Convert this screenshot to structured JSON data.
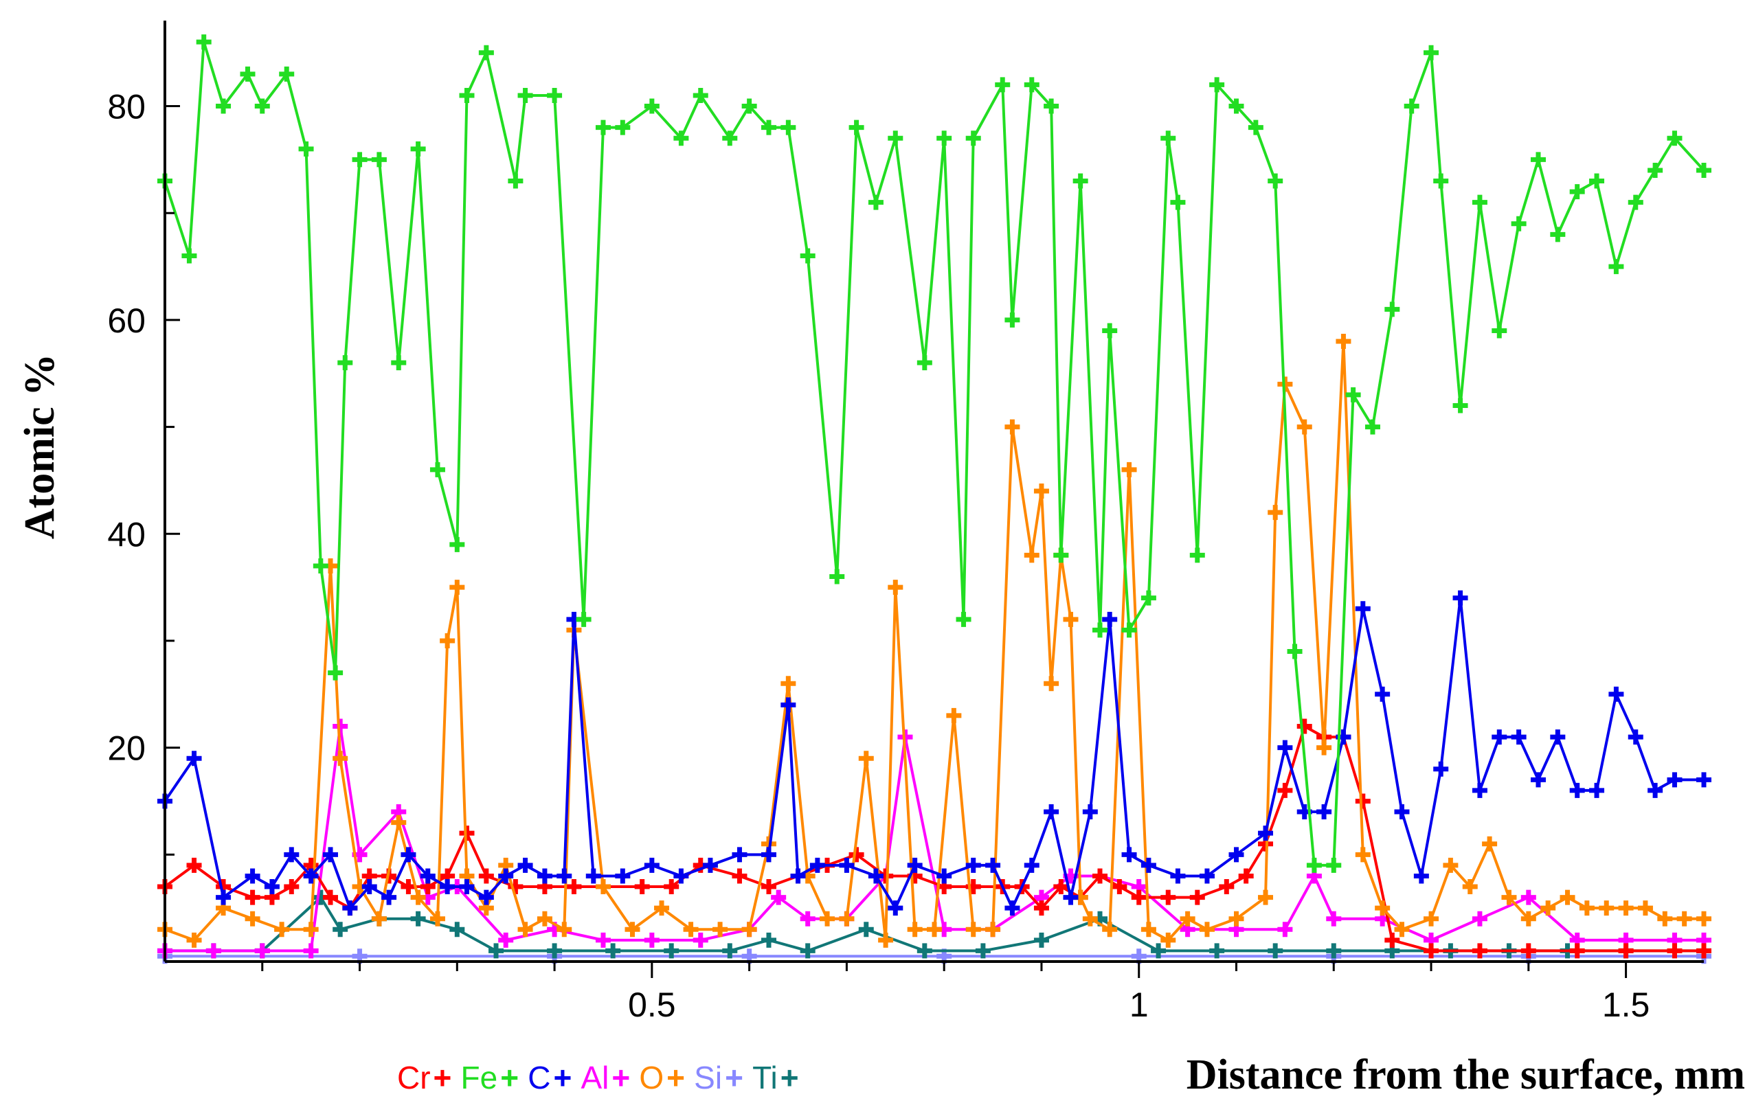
{
  "chart_data": {
    "type": "line",
    "title": "",
    "xlabel": "Distance from the surface, mm",
    "ylabel": "Atomic %",
    "xlim": [
      0,
      1.58
    ],
    "ylim": [
      0,
      88
    ],
    "x_ticks": [
      0.5,
      1,
      1.5
    ],
    "x_tick_labels": [
      "0.5",
      "1",
      "1.5"
    ],
    "y_ticks": [
      20,
      40,
      60,
      80
    ],
    "y_tick_labels": [
      "20",
      "40",
      "60",
      "80"
    ],
    "grid": false,
    "legend_position": "bottom-left",
    "marker": "+",
    "series": [
      {
        "name": "Cr",
        "color": "#ff0000",
        "x": [
          0,
          0.03,
          0.06,
          0.09,
          0.11,
          0.13,
          0.15,
          0.17,
          0.19,
          0.21,
          0.23,
          0.25,
          0.27,
          0.29,
          0.31,
          0.33,
          0.36,
          0.39,
          0.42,
          0.45,
          0.49,
          0.52,
          0.55,
          0.59,
          0.62,
          0.65,
          0.68,
          0.71,
          0.74,
          0.77,
          0.8,
          0.83,
          0.86,
          0.88,
          0.9,
          0.92,
          0.94,
          0.96,
          0.98,
          1.0,
          1.03,
          1.06,
          1.09,
          1.11,
          1.13,
          1.15,
          1.17,
          1.19,
          1.21,
          1.23,
          1.26,
          1.3,
          1.35,
          1.4,
          1.45,
          1.5,
          1.55,
          1.58
        ],
        "y": [
          7,
          9,
          7,
          6,
          6,
          7,
          9,
          6,
          5,
          8,
          8,
          7,
          7,
          8,
          12,
          8,
          7,
          7,
          7,
          7,
          7,
          7,
          9,
          8,
          7,
          8,
          9,
          10,
          8,
          8,
          7,
          7,
          7,
          7,
          5,
          7,
          6,
          8,
          7,
          6,
          6,
          6,
          7,
          8,
          11,
          16,
          22,
          21,
          21,
          15,
          2,
          1,
          1,
          1,
          1,
          1,
          1,
          1
        ]
      },
      {
        "name": "Fe",
        "color": "#22dd22",
        "x": [
          0,
          0.025,
          0.04,
          0.06,
          0.085,
          0.1,
          0.125,
          0.145,
          0.16,
          0.175,
          0.185,
          0.2,
          0.22,
          0.24,
          0.26,
          0.28,
          0.3,
          0.31,
          0.33,
          0.36,
          0.37,
          0.4,
          0.43,
          0.45,
          0.47,
          0.5,
          0.53,
          0.55,
          0.58,
          0.6,
          0.62,
          0.64,
          0.66,
          0.69,
          0.71,
          0.73,
          0.75,
          0.78,
          0.8,
          0.82,
          0.83,
          0.86,
          0.87,
          0.89,
          0.91,
          0.92,
          0.94,
          0.96,
          0.97,
          0.99,
          1.01,
          1.03,
          1.04,
          1.06,
          1.08,
          1.1,
          1.12,
          1.14,
          1.16,
          1.18,
          1.2,
          1.22,
          1.24,
          1.26,
          1.28,
          1.3,
          1.31,
          1.33,
          1.35,
          1.37,
          1.39,
          1.41,
          1.43,
          1.45,
          1.47,
          1.49,
          1.51,
          1.53,
          1.55,
          1.58
        ],
        "y": [
          73,
          66,
          86,
          80,
          83,
          80,
          83,
          76,
          37,
          27,
          56,
          75,
          75,
          56,
          76,
          46,
          39,
          81,
          85,
          73,
          81,
          81,
          32,
          78,
          78,
          80,
          77,
          81,
          77,
          80,
          78,
          78,
          66,
          36,
          78,
          71,
          77,
          56,
          77,
          32,
          77,
          82,
          60,
          82,
          80,
          38,
          73,
          31,
          59,
          31,
          34,
          77,
          71,
          38,
          82,
          80,
          78,
          73,
          29,
          9,
          9,
          53,
          50,
          61,
          80,
          85,
          73,
          52,
          71,
          59,
          69,
          75,
          68,
          72,
          73,
          65,
          71,
          74,
          77,
          74
        ]
      },
      {
        "name": "C",
        "color": "#0000ee",
        "x": [
          0,
          0.03,
          0.06,
          0.09,
          0.11,
          0.13,
          0.15,
          0.17,
          0.19,
          0.21,
          0.23,
          0.25,
          0.27,
          0.29,
          0.31,
          0.33,
          0.35,
          0.37,
          0.39,
          0.41,
          0.42,
          0.44,
          0.47,
          0.5,
          0.53,
          0.56,
          0.59,
          0.62,
          0.64,
          0.65,
          0.67,
          0.7,
          0.73,
          0.75,
          0.77,
          0.8,
          0.83,
          0.85,
          0.87,
          0.89,
          0.91,
          0.93,
          0.95,
          0.97,
          0.99,
          1.01,
          1.04,
          1.07,
          1.1,
          1.13,
          1.15,
          1.17,
          1.19,
          1.21,
          1.23,
          1.25,
          1.27,
          1.29,
          1.31,
          1.33,
          1.35,
          1.37,
          1.39,
          1.41,
          1.43,
          1.45,
          1.47,
          1.49,
          1.51,
          1.53,
          1.55,
          1.58
        ],
        "y": [
          15,
          19,
          6,
          8,
          7,
          10,
          8,
          10,
          5,
          7,
          6,
          10,
          8,
          7,
          7,
          6,
          8,
          9,
          8,
          8,
          32,
          8,
          8,
          9,
          8,
          9,
          10,
          10,
          24,
          8,
          9,
          9,
          8,
          5,
          9,
          8,
          9,
          9,
          5,
          9,
          14,
          6,
          14,
          32,
          10,
          9,
          8,
          8,
          10,
          12,
          20,
          14,
          14,
          21,
          33,
          25,
          14,
          8,
          18,
          34,
          16,
          21,
          21,
          17,
          21,
          16,
          16,
          25,
          21,
          16,
          17,
          17
        ]
      },
      {
        "name": "Al",
        "color": "#ff00ff",
        "x": [
          0,
          0.05,
          0.1,
          0.15,
          0.18,
          0.2,
          0.24,
          0.27,
          0.3,
          0.35,
          0.4,
          0.45,
          0.5,
          0.55,
          0.6,
          0.63,
          0.66,
          0.7,
          0.74,
          0.76,
          0.8,
          0.85,
          0.9,
          0.93,
          0.96,
          1.0,
          1.05,
          1.1,
          1.15,
          1.18,
          1.2,
          1.25,
          1.3,
          1.35,
          1.4,
          1.45,
          1.5,
          1.55,
          1.58
        ],
        "y": [
          1,
          1,
          1,
          1,
          22,
          10,
          14,
          6,
          7,
          2,
          3,
          2,
          2,
          2,
          3,
          6,
          4,
          4,
          8,
          21,
          3,
          3,
          6,
          8,
          8,
          7,
          3,
          3,
          3,
          8,
          4,
          4,
          2,
          4,
          6,
          2,
          2,
          2,
          2
        ]
      },
      {
        "name": "O",
        "color": "#ff8800",
        "x": [
          0,
          0.03,
          0.06,
          0.09,
          0.12,
          0.15,
          0.17,
          0.18,
          0.2,
          0.22,
          0.24,
          0.26,
          0.28,
          0.29,
          0.3,
          0.31,
          0.33,
          0.35,
          0.37,
          0.39,
          0.41,
          0.42,
          0.45,
          0.48,
          0.51,
          0.54,
          0.57,
          0.6,
          0.62,
          0.64,
          0.66,
          0.68,
          0.7,
          0.72,
          0.74,
          0.75,
          0.77,
          0.79,
          0.81,
          0.83,
          0.85,
          0.87,
          0.89,
          0.9,
          0.91,
          0.92,
          0.93,
          0.94,
          0.95,
          0.97,
          0.99,
          1.01,
          1.03,
          1.05,
          1.07,
          1.1,
          1.13,
          1.14,
          1.15,
          1.17,
          1.19,
          1.21,
          1.23,
          1.25,
          1.27,
          1.3,
          1.32,
          1.34,
          1.36,
          1.38,
          1.4,
          1.42,
          1.44,
          1.46,
          1.48,
          1.5,
          1.52,
          1.54,
          1.56,
          1.58
        ],
        "y": [
          3,
          2,
          5,
          4,
          3,
          3,
          37,
          19,
          7,
          4,
          13,
          6,
          4,
          30,
          35,
          8,
          5,
          9,
          3,
          4,
          3,
          31,
          7,
          3,
          5,
          3,
          3,
          3,
          11,
          26,
          8,
          4,
          4,
          19,
          2,
          35,
          3,
          3,
          23,
          3,
          3,
          50,
          38,
          44,
          26,
          38,
          32,
          6,
          4,
          3,
          46,
          3,
          2,
          4,
          3,
          4,
          6,
          42,
          54,
          50,
          20,
          58,
          10,
          5,
          3,
          4,
          9,
          7,
          11,
          6,
          4,
          5,
          6,
          5,
          5,
          5,
          5,
          4,
          4,
          4
        ]
      },
      {
        "name": "Si",
        "color": "#8888ff",
        "x": [
          0,
          0.2,
          0.4,
          0.6,
          0.8,
          1.0,
          1.2,
          1.4,
          1.58
        ],
        "y": [
          0.5,
          0.5,
          0.5,
          0.5,
          0.5,
          0.5,
          0.5,
          0.5,
          0.5
        ]
      },
      {
        "name": "Ti",
        "color": "#117777",
        "x": [
          0,
          0.05,
          0.1,
          0.16,
          0.18,
          0.22,
          0.26,
          0.3,
          0.34,
          0.4,
          0.46,
          0.52,
          0.58,
          0.62,
          0.66,
          0.72,
          0.78,
          0.84,
          0.9,
          0.96,
          1.02,
          1.08,
          1.14,
          1.2,
          1.26,
          1.32,
          1.38,
          1.44,
          1.5,
          1.58
        ],
        "y": [
          1,
          1,
          1,
          6,
          3,
          4,
          4,
          3,
          1,
          1,
          1,
          1,
          1,
          2,
          1,
          3,
          1,
          1,
          2,
          4,
          1,
          1,
          1,
          1,
          1,
          1,
          1,
          1,
          1,
          1
        ]
      }
    ]
  }
}
